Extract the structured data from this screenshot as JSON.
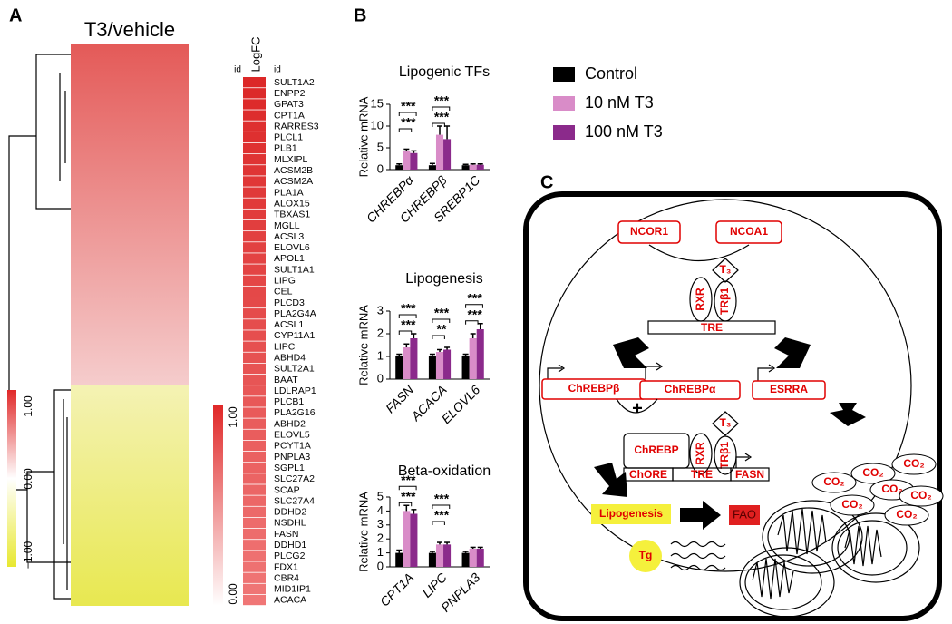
{
  "panels": {
    "a": "A",
    "b": "B",
    "c": "C"
  },
  "heatmap": {
    "title": "T3/vehicle",
    "colorbar_ticks": [
      "1.00",
      "0.00",
      "−1.00"
    ]
  },
  "gene_list": {
    "header": "LogFC",
    "id_left": "id",
    "id_right": "id",
    "colorbar_ticks": [
      "1.00",
      "0.00"
    ],
    "genes": [
      "SULT1A2",
      "ENPP2",
      "GPAT3",
      "CPT1A",
      "RARRES3",
      "PLCL1",
      "PLB1",
      "MLXIPL",
      "ACSM2B",
      "ACSM2A",
      "PLA1A",
      "ALOX15",
      "TBXAS1",
      "MGLL",
      "ACSL3",
      "ELOVL6",
      "APOL1",
      "SULT1A1",
      "LIPG",
      "CEL",
      "PLCD3",
      "PLA2G4A",
      "ACSL1",
      "CYP11A1",
      "LIPC",
      "ABHD4",
      "SULT2A1",
      "BAAT",
      "LDLRAP1",
      "PLCB1",
      "PLA2G16",
      "ABHD2",
      "ELOVL5",
      "PCYT1A",
      "PNPLA3",
      "SGPL1",
      "SLC27A2",
      "SCAP",
      "SLC27A4",
      "DDHD2",
      "NSDHL",
      "FASN",
      "DDHD1",
      "PLCG2",
      "FDX1",
      "CBR4",
      "MID1IP1",
      "ACACA"
    ]
  },
  "chart_data": [
    {
      "type": "bar",
      "title": "Lipogenic TFs",
      "y_label": "Relative mRNA",
      "categories": [
        "CHREBPα",
        "CHREBPβ",
        "SREBP1C"
      ],
      "series": [
        {
          "name": "Control",
          "color": "#000000",
          "values": [
            1,
            1,
            1
          ],
          "errors": [
            0.3,
            0.4,
            0.2
          ]
        },
        {
          "name": "10 nM T3",
          "color": "#d98cc8",
          "values": [
            4.2,
            8,
            1.1
          ],
          "errors": [
            0.5,
            2,
            0.2
          ]
        },
        {
          "name": "100 nM T3",
          "color": "#8b2a8b",
          "values": [
            3.8,
            7,
            1.1
          ],
          "errors": [
            0.5,
            3,
            0.2
          ]
        }
      ],
      "ylim": [
        0,
        15
      ],
      "yticks": [
        0,
        5,
        10,
        15
      ],
      "annotations": [
        {
          "text": "***",
          "category": "CHREBPα"
        },
        {
          "text": "***",
          "category": "CHREBPα"
        },
        {
          "text": "***",
          "category": "CHREBPβ"
        },
        {
          "text": "***",
          "category": "CHREBPβ"
        }
      ]
    },
    {
      "type": "bar",
      "title": "Lipogenesis",
      "y_label": "Relative mRNA",
      "categories": [
        "FASN",
        "ACACA",
        "ELOVL6"
      ],
      "series": [
        {
          "name": "Control",
          "color": "#000000",
          "values": [
            1,
            1,
            1
          ],
          "errors": [
            0.1,
            0.1,
            0.1
          ]
        },
        {
          "name": "10 nM T3",
          "color": "#d98cc8",
          "values": [
            1.4,
            1.2,
            1.8
          ],
          "errors": [
            0.15,
            0.1,
            0.2
          ]
        },
        {
          "name": "100 nM T3",
          "color": "#8b2a8b",
          "values": [
            1.8,
            1.3,
            2.2
          ],
          "errors": [
            0.2,
            0.1,
            0.25
          ]
        }
      ],
      "ylim": [
        0,
        3
      ],
      "yticks": [
        0,
        1,
        2,
        3
      ],
      "annotations": [
        {
          "text": "***",
          "category": "FASN"
        },
        {
          "text": "***",
          "category": "FASN"
        },
        {
          "text": "**",
          "category": "ACACA"
        },
        {
          "text": "***",
          "category": "ACACA"
        },
        {
          "text": "***",
          "category": "ELOVL6"
        },
        {
          "text": "***",
          "category": "ELOVL6"
        }
      ]
    },
    {
      "type": "bar",
      "title": "Beta-oxidation",
      "y_label": "Relative mRNA",
      "categories": [
        "CPT1A",
        "LIPC",
        "PNPLA3"
      ],
      "series": [
        {
          "name": "Control",
          "color": "#000000",
          "values": [
            1,
            1,
            1
          ],
          "errors": [
            0.2,
            0.1,
            0.1
          ]
        },
        {
          "name": "10 nM T3",
          "color": "#d98cc8",
          "values": [
            4,
            1.6,
            1.3
          ],
          "errors": [
            0.4,
            0.15,
            0.1
          ]
        },
        {
          "name": "100 nM T3",
          "color": "#8b2a8b",
          "values": [
            3.8,
            1.6,
            1.3
          ],
          "errors": [
            0.3,
            0.15,
            0.1
          ]
        }
      ],
      "ylim": [
        0,
        5
      ],
      "yticks": [
        0,
        1,
        2,
        3,
        4,
        5
      ],
      "annotations": [
        {
          "text": "***",
          "category": "CPT1A"
        },
        {
          "text": "***",
          "category": "CPT1A"
        },
        {
          "text": "***",
          "category": "LIPC"
        },
        {
          "text": "***",
          "category": "LIPC"
        }
      ]
    }
  ],
  "diagram": {
    "ncor1": "NCOR1",
    "ncoa1": "NCOA1",
    "t3_top": "T₃",
    "rxr_top": "RXR",
    "trb1_top": "TRβ1",
    "tre_top": "TRE",
    "chrebpb": "ChREBPβ",
    "chrebpa": "ChREBPα",
    "plus": "+",
    "esrra": "ESRRA",
    "chrebp": "ChREBP",
    "t3_bottom": "T₃",
    "rxr_bottom": "RXR",
    "trb1_bottom": "TRβ1",
    "chore": "ChORE",
    "tre_bottom": "TRE",
    "fasn": "FASN",
    "lipogenesis": "Lipogenesis",
    "fao": "FAO",
    "tg": "Tg",
    "co2": [
      "CO₂",
      "CO₂",
      "CO₂",
      "CO₂",
      "CO₂",
      "CO₂",
      "CO₂"
    ]
  }
}
